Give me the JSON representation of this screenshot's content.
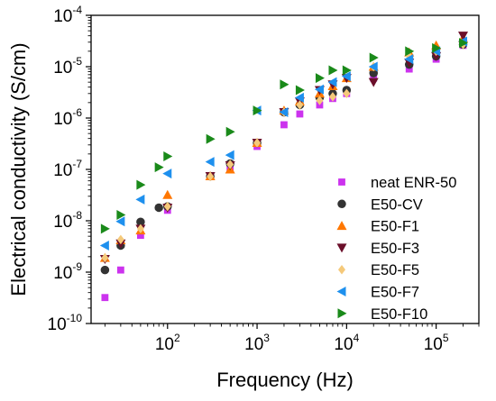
{
  "chart_data": {
    "type": "scatter",
    "xlabel": "Frequency (Hz)",
    "ylabel": "Electrical conductivity (S/cm)",
    "x_scale": "log",
    "y_scale": "log",
    "xlim": [
      14,
      300000
    ],
    "ylim": [
      1e-10,
      0.0001
    ],
    "x_ticks": [
      {
        "value": 100,
        "base": "10",
        "exp": "2"
      },
      {
        "value": 1000,
        "base": "10",
        "exp": "3"
      },
      {
        "value": 10000,
        "base": "10",
        "exp": "4"
      },
      {
        "value": 100000,
        "base": "10",
        "exp": "5"
      }
    ],
    "y_ticks": [
      {
        "value": 1e-10,
        "base": "10",
        "exp": "-10"
      },
      {
        "value": 1e-09,
        "base": "10",
        "exp": "-9"
      },
      {
        "value": 1e-08,
        "base": "10",
        "exp": "-8"
      },
      {
        "value": 1e-07,
        "base": "10",
        "exp": "-7"
      },
      {
        "value": 1e-06,
        "base": "10",
        "exp": "-6"
      },
      {
        "value": 1e-05,
        "base": "10",
        "exp": "-5"
      },
      {
        "value": 0.0001,
        "base": "10",
        "exp": "-4"
      }
    ],
    "grid": false,
    "legend_position": "bottom-right",
    "series": [
      {
        "name": "neat ENR-50",
        "marker": "square",
        "color": "#cc33ee",
        "x": [
          20,
          30,
          50,
          100,
          300,
          500,
          1000,
          2000,
          3000,
          5000,
          7000,
          10000,
          20000,
          50000,
          100000,
          200000
        ],
        "y": [
          3.2e-10,
          1.1e-09,
          5.2e-09,
          1.6e-08,
          7.4e-08,
          1.05e-07,
          2.8e-07,
          7.4e-07,
          1.2e-06,
          1.8e-06,
          2.4e-06,
          3e-06,
          6e-06,
          9e-06,
          1.4e-05,
          2.6e-05
        ]
      },
      {
        "name": "E50-CV",
        "marker": "circle",
        "color": "#333333",
        "x": [
          20,
          30,
          50,
          80,
          100,
          300,
          500,
          1000,
          2000,
          3000,
          5000,
          7000,
          10000,
          20000,
          50000,
          100000,
          200000
        ],
        "y": [
          1.1e-09,
          3.3e-09,
          9.5e-09,
          1.8e-08,
          1.9e-08,
          7.4e-08,
          1.3e-07,
          3.3e-07,
          1.3e-06,
          1.8e-06,
          2.5e-06,
          3e-06,
          3.5e-06,
          7.5e-06,
          1.1e-05,
          1.6e-05,
          2.7e-05
        ]
      },
      {
        "name": "E50-F1",
        "marker": "triangle-up",
        "color": "#ff7700",
        "x": [
          20,
          30,
          50,
          100,
          300,
          500,
          1000,
          2000,
          3000,
          5000,
          7000,
          10000,
          20000,
          50000,
          100000,
          200000
        ],
        "y": [
          1.9e-09,
          4.2e-09,
          6.5e-09,
          3.2e-08,
          7.4e-08,
          1e-07,
          3.3e-07,
          1.4e-06,
          2.1e-06,
          3e-06,
          4.2e-06,
          6e-06,
          1e-05,
          1.9e-05,
          2.6e-05,
          3.6e-05
        ]
      },
      {
        "name": "E50-F3",
        "marker": "triangle-down",
        "color": "#6b0f2a",
        "x": [
          20,
          30,
          50,
          100,
          300,
          500,
          1000,
          2000,
          3000,
          5000,
          7000,
          10000,
          20000,
          50000,
          100000,
          200000
        ],
        "y": [
          1.8e-09,
          3.6e-09,
          7e-09,
          1.8e-08,
          7.4e-08,
          1.2e-07,
          3.3e-07,
          1.3e-06,
          2.1e-06,
          3.5e-06,
          4.5e-06,
          6e-06,
          5e-06,
          1.2e-05,
          1.6e-05,
          4e-05
        ]
      },
      {
        "name": "E50-F5",
        "marker": "diamond",
        "color": "#f5c97a",
        "x": [
          20,
          30,
          50,
          100,
          300,
          500,
          1000,
          2000,
          3000,
          5000,
          7000,
          10000,
          20000,
          50000,
          100000,
          200000
        ],
        "y": [
          1.9e-09,
          4.3e-09,
          7e-09,
          1.9e-08,
          7.3e-08,
          1.25e-07,
          3.3e-07,
          1.3e-06,
          1.8e-06,
          2.2e-06,
          2.6e-06,
          3e-06,
          1e-05,
          1.6e-05,
          2e-05,
          2.7e-05
        ]
      },
      {
        "name": "E50-F7",
        "marker": "triangle-left",
        "color": "#1e90ee",
        "x": [
          20,
          30,
          50,
          100,
          300,
          500,
          1000,
          2000,
          3000,
          5000,
          7000,
          10000,
          20000,
          50000,
          100000,
          200000
        ],
        "y": [
          3.3e-09,
          9.7e-09,
          2.6e-08,
          8.3e-08,
          1.4e-07,
          1.9e-07,
          1.4e-06,
          1.3e-06,
          2.5e-06,
          3.6e-06,
          5e-06,
          6.5e-06,
          1e-05,
          1.4e-05,
          2e-05,
          3.1e-05
        ]
      },
      {
        "name": "E50-F10",
        "marker": "triangle-right",
        "color": "#1a8a1a",
        "x": [
          20,
          30,
          50,
          80,
          100,
          300,
          500,
          1000,
          2000,
          3000,
          5000,
          7000,
          10000,
          20000,
          50000,
          100000,
          200000
        ],
        "y": [
          7e-09,
          1.3e-08,
          5e-08,
          1.1e-07,
          1.8e-07,
          3.9e-07,
          5.4e-07,
          1.4e-06,
          4.5e-06,
          3.5e-06,
          6e-06,
          8.5e-06,
          8.5e-06,
          1.5e-05,
          2e-05,
          2.3e-05,
          2.9e-05
        ]
      }
    ]
  }
}
